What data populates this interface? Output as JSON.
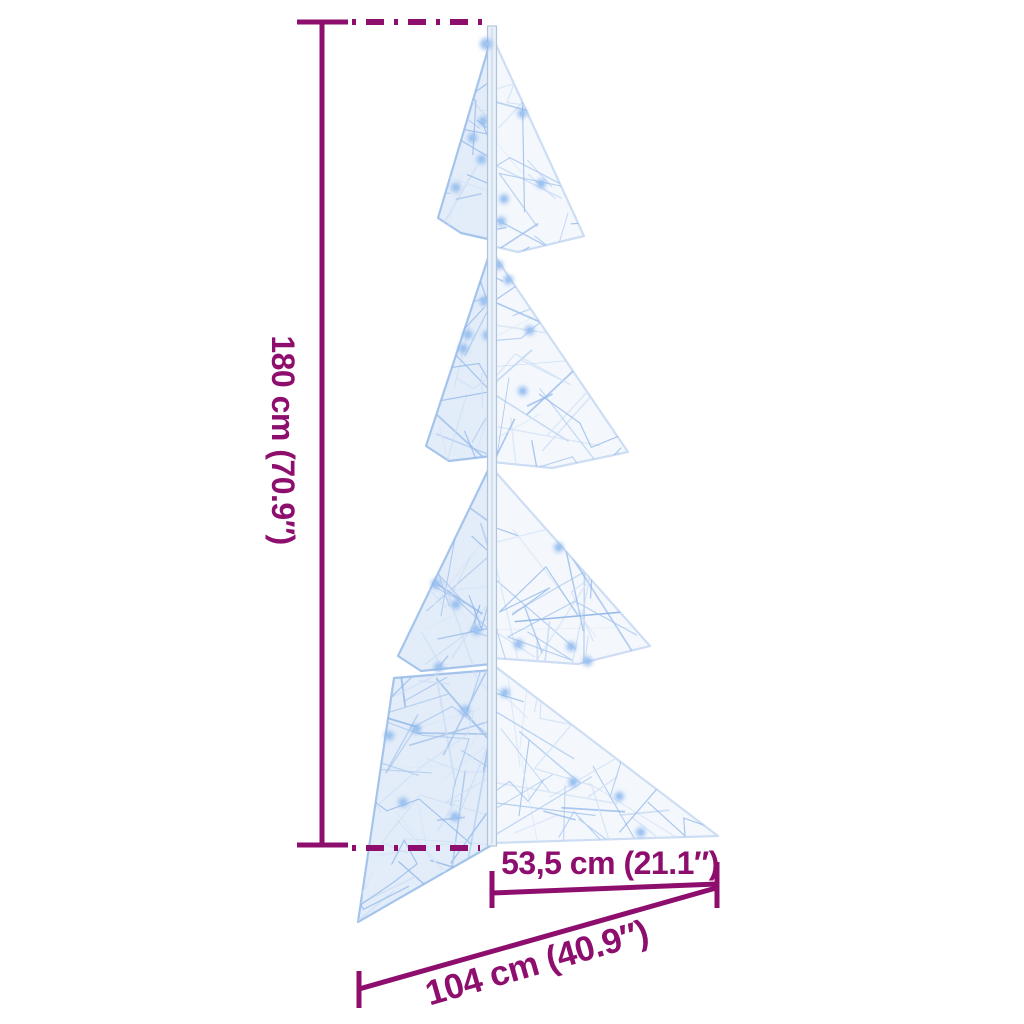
{
  "figure": {
    "kind": "product-dimension-diagram"
  },
  "dimensions": {
    "height": {
      "label": "180 cm (70.9″)"
    },
    "depth": {
      "label": "53,5 cm (21.1″)"
    },
    "width": {
      "label": "104 cm (40.9″)"
    }
  },
  "colors": {
    "dimension_accent": "#8e0e6e",
    "background": "#ffffff",
    "tree_line_light": "#cdddf4",
    "tree_line_mid": "#a5c4ec",
    "tree_line_deep": "#8fb5e8",
    "tree_led": "#86b2ea",
    "tree_fill_left": "#e3edf9",
    "tree_fill_right": "#f4f8fd",
    "pole_fill": "#e8f0f9",
    "pole_edge": "#b3c4da"
  }
}
